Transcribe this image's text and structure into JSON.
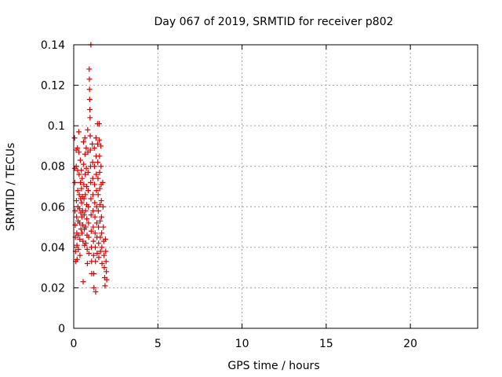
{
  "chart_data": {
    "type": "scatter",
    "title": "Day 067 of 2019, SRMTID for receiver p802",
    "xlabel": "GPS time / hours",
    "ylabel": "SRMTID / TECUs",
    "xlim": [
      0,
      24
    ],
    "ylim": [
      0,
      0.14
    ],
    "xticks": [
      0,
      5,
      10,
      15,
      20
    ],
    "xtick_labels": [
      "0",
      "5",
      "10",
      "15",
      "20"
    ],
    "yticks": [
      0,
      0.02,
      0.04,
      0.06,
      0.08,
      0.1,
      0.12,
      0.14
    ],
    "ytick_labels": [
      "0",
      "0.02",
      "0.04",
      "0.06",
      "0.08",
      "0.1",
      "0.12",
      "0.14"
    ],
    "grid": true,
    "marker": "plus",
    "color": "#dd0000",
    "series": [
      {
        "name": "SRMTID",
        "points": [
          [
            0.05,
            0.094
          ],
          [
            0.06,
            0.079
          ],
          [
            0.07,
            0.072
          ],
          [
            0.08,
            0.058
          ],
          [
            0.09,
            0.051
          ],
          [
            0.1,
            0.045
          ],
          [
            0.11,
            0.038
          ],
          [
            0.12,
            0.033
          ],
          [
            0.14,
            0.088
          ],
          [
            0.15,
            0.08
          ],
          [
            0.16,
            0.063
          ],
          [
            0.17,
            0.055
          ],
          [
            0.18,
            0.047
          ],
          [
            0.19,
            0.041
          ],
          [
            0.2,
            0.034
          ],
          [
            0.22,
            0.089
          ],
          [
            0.23,
            0.078
          ],
          [
            0.24,
            0.068
          ],
          [
            0.25,
            0.06
          ],
          [
            0.26,
            0.053
          ],
          [
            0.27,
            0.046
          ],
          [
            0.28,
            0.039
          ],
          [
            0.3,
            0.097
          ],
          [
            0.31,
            0.087
          ],
          [
            0.32,
            0.076
          ],
          [
            0.33,
            0.066
          ],
          [
            0.34,
            0.059
          ],
          [
            0.35,
            0.052
          ],
          [
            0.36,
            0.044
          ],
          [
            0.37,
            0.036
          ],
          [
            0.39,
            0.083
          ],
          [
            0.4,
            0.072
          ],
          [
            0.41,
            0.064
          ],
          [
            0.42,
            0.057
          ],
          [
            0.43,
            0.049
          ],
          [
            0.45,
            0.078
          ],
          [
            0.46,
            0.069
          ],
          [
            0.47,
            0.062
          ],
          [
            0.48,
            0.055
          ],
          [
            0.49,
            0.047
          ],
          [
            0.5,
            0.074
          ],
          [
            0.52,
            0.065
          ],
          [
            0.53,
            0.058
          ],
          [
            0.54,
            0.051
          ],
          [
            0.55,
            0.043
          ],
          [
            0.56,
            0.023
          ],
          [
            0.58,
            0.092
          ],
          [
            0.59,
            0.081
          ],
          [
            0.6,
            0.071
          ],
          [
            0.61,
            0.064
          ],
          [
            0.62,
            0.056
          ],
          [
            0.63,
            0.049
          ],
          [
            0.64,
            0.041
          ],
          [
            0.66,
            0.094
          ],
          [
            0.67,
            0.086
          ],
          [
            0.68,
            0.076
          ],
          [
            0.69,
            0.066
          ],
          [
            0.7,
            0.058
          ],
          [
            0.71,
            0.05
          ],
          [
            0.72,
            0.042
          ],
          [
            0.74,
            0.089
          ],
          [
            0.75,
            0.079
          ],
          [
            0.76,
            0.07
          ],
          [
            0.77,
            0.061
          ],
          [
            0.78,
            0.054
          ],
          [
            0.79,
            0.046
          ],
          [
            0.8,
            0.039
          ],
          [
            0.81,
            0.032
          ],
          [
            0.83,
            0.098
          ],
          [
            0.84,
            0.087
          ],
          [
            0.85,
            0.077
          ],
          [
            0.86,
            0.068
          ],
          [
            0.87,
            0.06
          ],
          [
            0.88,
            0.052
          ],
          [
            0.89,
            0.045
          ],
          [
            0.9,
            0.037
          ],
          [
            0.92,
            0.128
          ],
          [
            0.93,
            0.123
          ],
          [
            0.94,
            0.118
          ],
          [
            0.95,
            0.113
          ],
          [
            0.96,
            0.108
          ],
          [
            0.97,
            0.104
          ],
          [
            0.98,
            0.095
          ],
          [
            0.99,
            0.088
          ],
          [
            1.0,
            0.08
          ],
          [
            1.01,
            0.072
          ],
          [
            1.02,
            0.064
          ],
          [
            1.03,
            0.056
          ],
          [
            1.04,
            0.048
          ],
          [
            1.05,
            0.04
          ],
          [
            1.06,
            0.033
          ],
          [
            1.07,
            0.027
          ],
          [
            1.02,
            0.14
          ],
          [
            1.1,
            0.091
          ],
          [
            1.12,
            0.082
          ],
          [
            1.13,
            0.074
          ],
          [
            1.14,
            0.066
          ],
          [
            1.15,
            0.058
          ],
          [
            1.16,
            0.05
          ],
          [
            1.17,
            0.043
          ],
          [
            1.18,
            0.036
          ],
          [
            1.19,
            0.027
          ],
          [
            1.2,
            0.02
          ],
          [
            1.22,
            0.089
          ],
          [
            1.23,
            0.08
          ],
          [
            1.24,
            0.071
          ],
          [
            1.25,
            0.062
          ],
          [
            1.26,
            0.055
          ],
          [
            1.27,
            0.047
          ],
          [
            1.28,
            0.04
          ],
          [
            1.29,
            0.033
          ],
          [
            1.3,
            0.018
          ],
          [
            1.32,
            0.094
          ],
          [
            1.33,
            0.085
          ],
          [
            1.34,
            0.076
          ],
          [
            1.35,
            0.068
          ],
          [
            1.36,
            0.06
          ],
          [
            1.37,
            0.052
          ],
          [
            1.38,
            0.045
          ],
          [
            1.39,
            0.037
          ],
          [
            1.41,
            0.101
          ],
          [
            1.42,
            0.091
          ],
          [
            1.43,
            0.082
          ],
          [
            1.44,
            0.074
          ],
          [
            1.45,
            0.066
          ],
          [
            1.46,
            0.058
          ],
          [
            1.47,
            0.05
          ],
          [
            1.48,
            0.042
          ],
          [
            1.49,
            0.035
          ],
          [
            1.51,
            0.101
          ],
          [
            1.52,
            0.093
          ],
          [
            1.53,
            0.085
          ],
          [
            1.54,
            0.077
          ],
          [
            1.55,
            0.069
          ],
          [
            1.56,
            0.061
          ],
          [
            1.57,
            0.053
          ],
          [
            1.58,
            0.045
          ],
          [
            1.59,
            0.038
          ],
          [
            1.61,
            0.09
          ],
          [
            1.62,
            0.08
          ],
          [
            1.63,
            0.071
          ],
          [
            1.64,
            0.063
          ],
          [
            1.65,
            0.055
          ],
          [
            1.66,
            0.047
          ],
          [
            1.67,
            0.04
          ],
          [
            1.68,
            0.032
          ],
          [
            1.72,
            0.072
          ],
          [
            1.74,
            0.06
          ],
          [
            1.76,
            0.05
          ],
          [
            1.78,
            0.043
          ],
          [
            1.8,
            0.036
          ],
          [
            1.82,
            0.03
          ],
          [
            1.84,
            0.025
          ],
          [
            1.86,
            0.021
          ],
          [
            1.88,
            0.044
          ],
          [
            1.9,
            0.038
          ],
          [
            1.92,
            0.033
          ],
          [
            1.94,
            0.028
          ],
          [
            1.96,
            0.024
          ]
        ]
      }
    ]
  }
}
